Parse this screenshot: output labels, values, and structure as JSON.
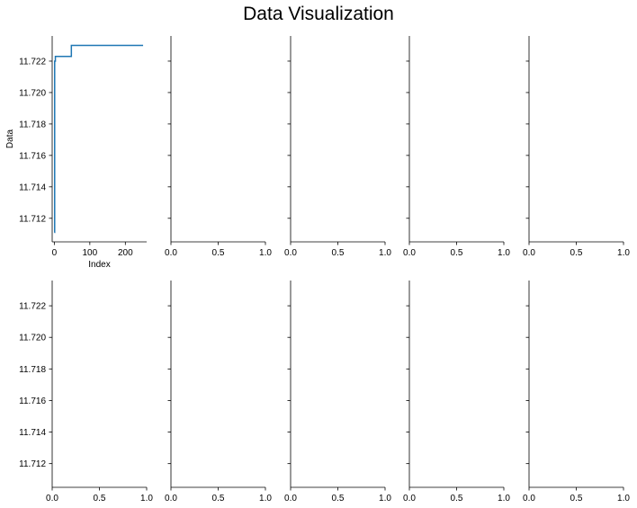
{
  "figure": {
    "title": "Data Visualization"
  },
  "chart_data": {
    "type": "line",
    "layout": {
      "rows": 2,
      "cols": 5,
      "sharey": true
    },
    "shared_ylim": [
      11.7105,
      11.7236
    ],
    "y_ticks": [
      "11.712",
      "11.714",
      "11.716",
      "11.718",
      "11.720",
      "11.722"
    ],
    "y_tick_values": [
      11.712,
      11.714,
      11.716,
      11.718,
      11.72,
      11.722
    ],
    "empty_x_ticks": [
      "0.0",
      "0.5",
      "1.0"
    ],
    "empty_x_tick_values": [
      0,
      0.5,
      1
    ],
    "subplots": [
      {
        "xlabel": "Index",
        "ylabel": "Data",
        "xlim": [
          -6,
          260
        ],
        "x_ticks": [
          "0",
          "100",
          "200"
        ],
        "x_tick_values": [
          0,
          100,
          200
        ],
        "color": "#1f77b4",
        "series": [
          {
            "x": [
              0,
              1,
              1,
              3,
              3,
              5,
              5,
              48,
              48,
              250
            ],
            "y": [
              11.7111,
              11.7111,
              11.722,
              11.722,
              11.7223,
              11.7223,
              11.7223,
              11.7223,
              11.723,
              11.723
            ]
          }
        ]
      }
    ]
  }
}
